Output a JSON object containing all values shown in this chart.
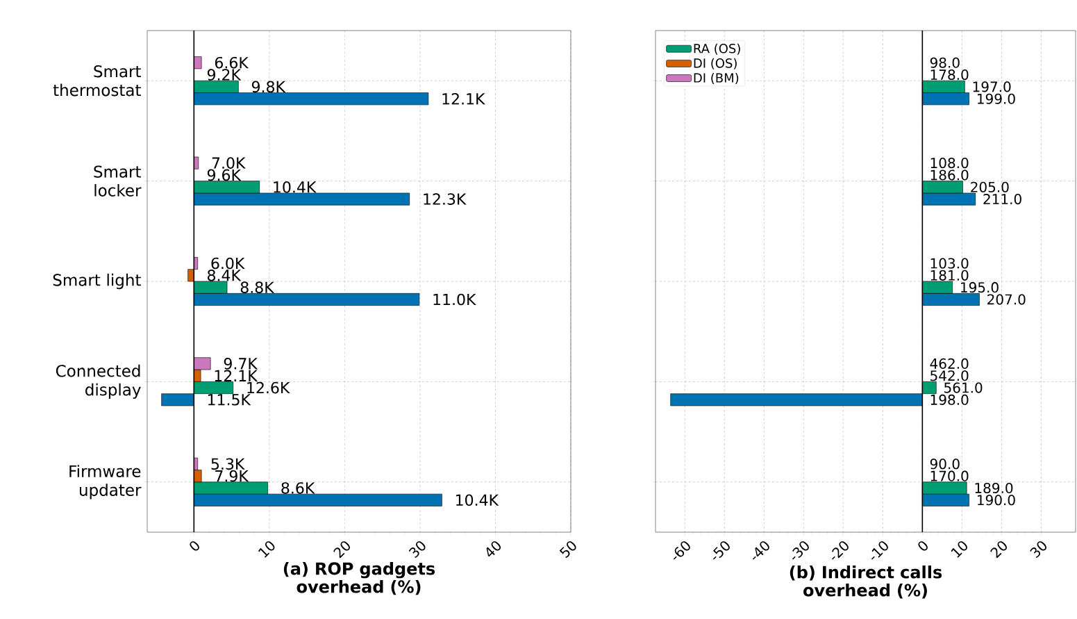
{
  "chart_data": [
    {
      "type": "bar",
      "orientation": "horizontal",
      "xlabel": "(a) ROP gadgets overhead (%)",
      "categories": [
        "Smart thermostat",
        "Smart locker",
        "Smart light",
        "Connected display",
        "Firmware updater"
      ],
      "xlim": [
        -6.2,
        50
      ],
      "xticks": [
        0,
        10,
        20,
        30,
        40,
        50
      ],
      "grid": true,
      "ref_lines": [
        {
          "axis": "x",
          "value": 0,
          "color": "#000000"
        }
      ],
      "series": [
        {
          "color": "#0173b2",
          "values": [
            31.1,
            28.6,
            29.9,
            -4.3,
            32.9
          ]
        },
        {
          "color": "#029e73",
          "values": [
            5.9,
            8.7,
            4.4,
            5.2,
            9.8
          ]
        },
        {
          "color": "#d55e00",
          "values": [
            0,
            0,
            -0.8,
            0.9,
            1.0
          ]
        },
        {
          "color": "#cc78bc",
          "values": [
            1.0,
            0.6,
            0.5,
            2.2,
            0.5
          ]
        }
      ],
      "annotations": [
        "6.6K",
        "9.2K",
        "9.8K",
        "12.1K",
        "7.0K",
        "9.6K",
        "10.4K",
        "12.3K",
        "6.0K",
        "8.4K",
        "8.8K",
        "11.0K",
        "9.7K",
        "12.1K",
        "12.6K",
        "11.5K",
        "5.3K",
        "7.9K",
        "8.6K",
        "10.4K"
      ]
    },
    {
      "type": "bar",
      "orientation": "horizontal",
      "xlabel": "(b) Indirect calls overhead (%)",
      "categories": [
        null,
        null,
        null,
        null,
        null
      ],
      "xlim": [
        -67.4,
        38.7
      ],
      "xticks": [
        -60,
        -50,
        -40,
        -30,
        -20,
        -10,
        0,
        10,
        20,
        30
      ],
      "grid": true,
      "tick_labels": "x",
      "legend": "top left",
      "ref_lines": [
        {
          "axis": "x",
          "value": 0,
          "color": "#000000"
        }
      ],
      "series": [
        {
          "color": "#0173b2",
          "values": [
            11.8,
            13.4,
            14.4,
            -63.6,
            11.8
          ]
        },
        {
          "name": "RA (OS)",
          "color": "#029e73",
          "values": [
            10.7,
            10.2,
            7.6,
            3.5,
            11.2
          ]
        },
        {
          "name": "DI (OS)",
          "color": "#d55e00",
          "values": [
            0,
            0,
            0,
            0,
            0
          ]
        },
        {
          "name": "DI (BM)",
          "color": "#cc78bc",
          "values": [
            0,
            0,
            0,
            0,
            0
          ]
        }
      ],
      "annotations": [
        "98.0",
        "178.0",
        "197.0",
        "199.0",
        "108.0",
        "186.0",
        "205.0",
        "211.0",
        "103.0",
        "181.0",
        "195.0",
        "207.0",
        "462.0",
        "542.0",
        "561.0",
        "198.0",
        "90.0",
        "170.0",
        "189.0",
        "190.0"
      ]
    }
  ]
}
